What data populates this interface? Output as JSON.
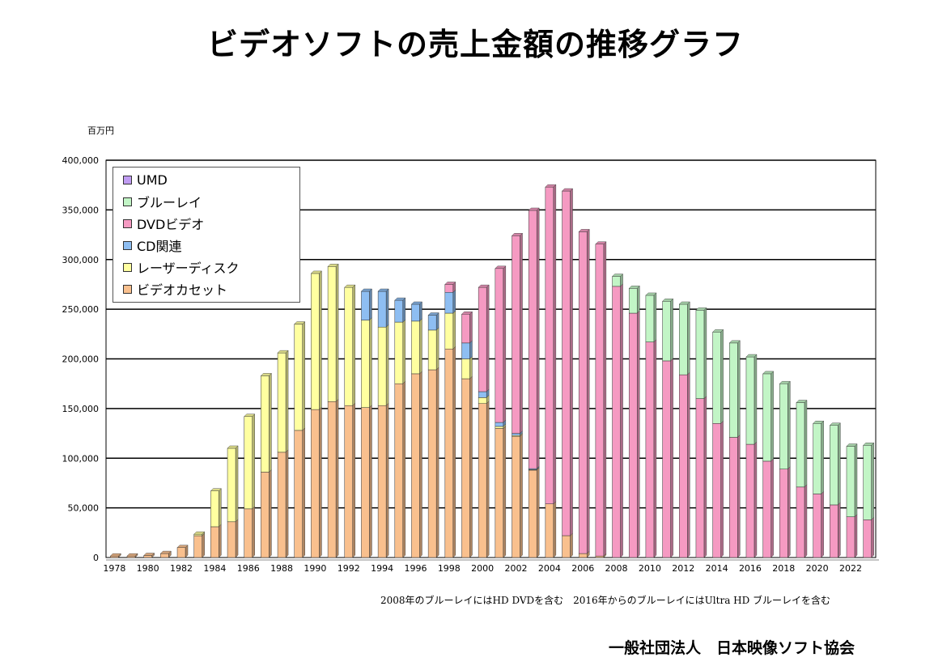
{
  "page": {
    "title": "ビデオソフトの売上金額の推移グラフ",
    "unit": "百万円",
    "note": "2008年のブルーレイにはHD DVDを含む　2016年からのブルーレイにはUltra HD ブルーレイを含む",
    "footer": "一般社団法人　日本映像ソフト協会"
  },
  "chart_data": {
    "type": "bar",
    "stacked": true,
    "ylim": [
      0,
      400000
    ],
    "ytick_labels": [
      "0",
      "50,000",
      "100,000",
      "150,000",
      "200,000",
      "250,000",
      "300,000",
      "350,000",
      "400,000"
    ],
    "grid": true,
    "legend_position": "top-left",
    "categories": [
      1978,
      1979,
      1980,
      1981,
      1982,
      1983,
      1984,
      1985,
      1986,
      1987,
      1988,
      1989,
      1990,
      1991,
      1992,
      1993,
      1994,
      1995,
      1996,
      1997,
      1998,
      1999,
      2000,
      2001,
      2002,
      2003,
      2004,
      2005,
      2006,
      2007,
      2008,
      2009,
      2010,
      2011,
      2012,
      2013,
      2014,
      2015,
      2016,
      2017,
      2018,
      2019,
      2020,
      2021,
      2022,
      2023
    ],
    "xtick_labels": [
      "1978",
      "1980",
      "1982",
      "1984",
      "1986",
      "1988",
      "1990",
      "1992",
      "1994",
      "1996",
      "1998",
      "2000",
      "2002",
      "2004",
      "2006",
      "2008",
      "2010",
      "2012",
      "2014",
      "2016",
      "2018",
      "2020",
      "2022"
    ],
    "series": [
      {
        "name": "ビデオカセット",
        "color": "#f9c08e",
        "values": [
          1500,
          1500,
          2000,
          4000,
          10000,
          22000,
          31000,
          36000,
          49000,
          86000,
          106000,
          128000,
          149000,
          157000,
          153000,
          151000,
          153000,
          175000,
          185000,
          189000,
          210000,
          180000,
          155000,
          130000,
          122000,
          88000,
          54000,
          22000,
          4000,
          1500,
          0,
          0,
          0,
          0,
          0,
          0,
          0,
          0,
          0,
          0,
          0,
          0,
          0,
          0,
          0,
          0
        ]
      },
      {
        "name": "レーザーディスク",
        "color": "#ffffa0",
        "values": [
          0,
          0,
          0,
          0,
          0,
          1500,
          36000,
          74000,
          93000,
          97000,
          100000,
          107000,
          137000,
          136000,
          119000,
          88000,
          79000,
          62000,
          53000,
          40000,
          36000,
          20000,
          6000,
          2000,
          1000,
          500,
          0,
          0,
          0,
          0,
          0,
          0,
          0,
          0,
          0,
          0,
          0,
          0,
          0,
          0,
          0,
          0,
          0,
          0,
          0,
          0
        ]
      },
      {
        "name": "CD関連",
        "color": "#8ebef2",
        "values": [
          0,
          0,
          0,
          0,
          0,
          0,
          0,
          0,
          0,
          0,
          0,
          0,
          0,
          0,
          0,
          29000,
          36000,
          22000,
          17000,
          15000,
          21000,
          16000,
          6000,
          4000,
          2000,
          1000,
          0,
          0,
          0,
          0,
          0,
          0,
          0,
          0,
          0,
          0,
          0,
          0,
          0,
          0,
          0,
          0,
          0,
          0,
          0,
          0
        ]
      },
      {
        "name": "DVDビデオ",
        "color": "#f59ac2",
        "values": [
          0,
          0,
          0,
          0,
          0,
          0,
          0,
          0,
          0,
          0,
          0,
          0,
          0,
          0,
          0,
          0,
          0,
          0,
          0,
          0,
          8000,
          29000,
          105000,
          155000,
          199000,
          260000,
          319000,
          347000,
          324000,
          314000,
          273000,
          246000,
          217000,
          198000,
          184000,
          160000,
          135000,
          121000,
          114000,
          97000,
          89000,
          71000,
          64000,
          53000,
          41000,
          38000
        ]
      },
      {
        "name": "ブルーレイ",
        "color": "#c2f5c6",
        "values": [
          0,
          0,
          0,
          0,
          0,
          0,
          0,
          0,
          0,
          0,
          0,
          0,
          0,
          0,
          0,
          0,
          0,
          0,
          0,
          0,
          0,
          0,
          0,
          0,
          0,
          0,
          0,
          0,
          0,
          0,
          10000,
          25000,
          47000,
          60000,
          71000,
          89000,
          92000,
          95000,
          88000,
          88000,
          86000,
          85000,
          71000,
          80000,
          71000,
          75000
        ]
      },
      {
        "name": "UMD",
        "color": "#c09cf2",
        "values": [
          0,
          0,
          0,
          0,
          0,
          0,
          0,
          0,
          0,
          0,
          0,
          0,
          0,
          0,
          0,
          0,
          0,
          0,
          0,
          0,
          0,
          0,
          0,
          0,
          0,
          0,
          0,
          0,
          0,
          0,
          0,
          0,
          0,
          0,
          0,
          0,
          0,
          0,
          0,
          0,
          0,
          0,
          0,
          0,
          0,
          0
        ]
      }
    ],
    "legend_order": [
      "UMD",
      "ブルーレイ",
      "DVDビデオ",
      "CD関連",
      "レーザーディスク",
      "ビデオカセット"
    ]
  }
}
